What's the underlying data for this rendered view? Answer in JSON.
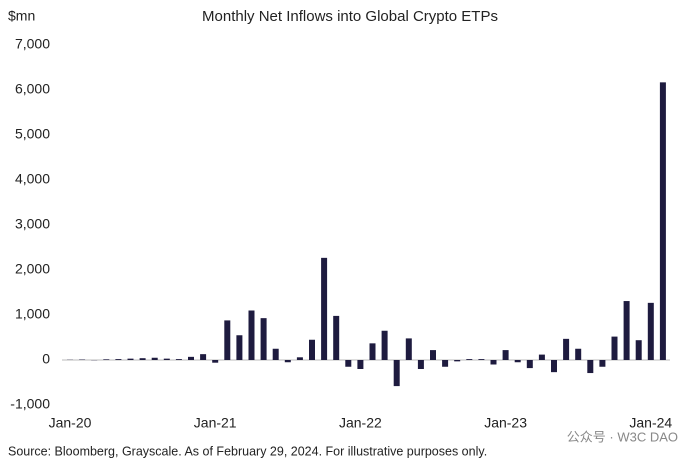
{
  "chart_data": {
    "type": "bar",
    "title": "Monthly Net Inflows into Global Crypto ETPs",
    "y_label": "$mn",
    "source": "Source: Bloomberg, Grayscale. As of February 29, 2024. For illustrative purposes only.",
    "watermark": "公众号 · W3C DAO",
    "color": "#1e1b3f",
    "categories": [
      "Jan-20",
      null,
      null,
      null,
      null,
      null,
      null,
      null,
      null,
      null,
      null,
      null,
      "Jan-21",
      null,
      null,
      null,
      null,
      null,
      null,
      null,
      null,
      null,
      null,
      null,
      "Jan-22",
      null,
      null,
      null,
      null,
      null,
      null,
      null,
      null,
      null,
      null,
      null,
      "Jan-23",
      null,
      null,
      null,
      null,
      null,
      null,
      null,
      null,
      null,
      null,
      null,
      "Jan-24",
      null
    ],
    "values": [
      5,
      10,
      -5,
      15,
      20,
      30,
      40,
      50,
      30,
      20,
      70,
      130,
      -60,
      880,
      550,
      1100,
      930,
      250,
      -50,
      60,
      450,
      2270,
      980,
      -150,
      -200,
      370,
      650,
      -580,
      480,
      -200,
      220,
      -150,
      -30,
      20,
      20,
      -100,
      220,
      -50,
      -180,
      120,
      -270,
      470,
      250,
      -290,
      -150,
      520,
      1310,
      440,
      1270,
      6170
    ],
    "ylim": [
      -1000,
      7000
    ],
    "yticks": [
      {
        "value": -1000,
        "label": "-1,000"
      },
      0,
      {
        "value": 1000,
        "label": "1,000"
      },
      {
        "value": 2000,
        "label": "2,000"
      },
      {
        "value": 3000,
        "label": "3,000"
      },
      {
        "value": 4000,
        "label": "4,000"
      },
      {
        "value": 5000,
        "label": "5,000"
      },
      {
        "value": 6000,
        "label": "6,000"
      },
      {
        "value": 7000,
        "label": "7,000"
      }
    ]
  }
}
